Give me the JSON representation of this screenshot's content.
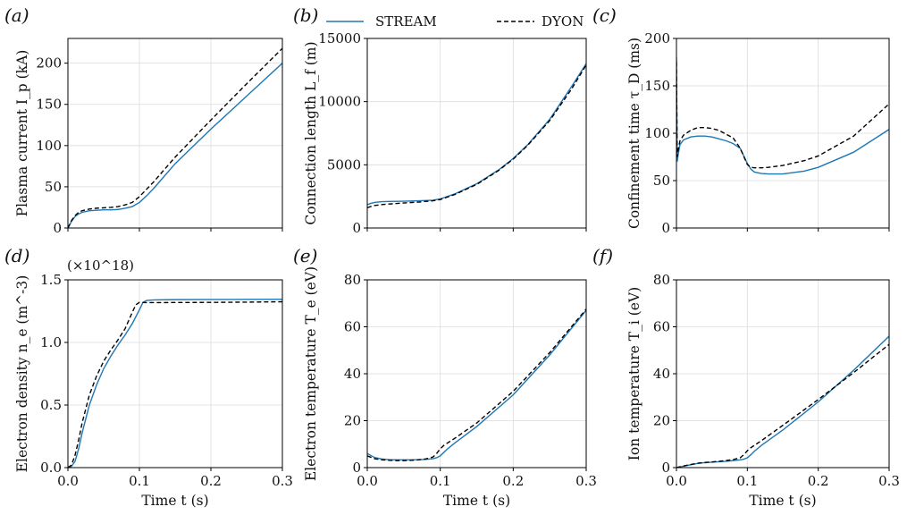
{
  "legend": {
    "entries": [
      {
        "label": "STREAM",
        "color": "#1f77b4",
        "dash": "solid"
      },
      {
        "label": "DYON",
        "color": "#000000",
        "dash": "dashed"
      }
    ],
    "placement": "top-center"
  },
  "chart_data": [
    {
      "panel": "(a)",
      "type": "line",
      "xlabel": "",
      "ylabel": "Plasma current I_p (kA)",
      "xlim": [
        0,
        0.3
      ],
      "ylim": [
        0,
        230
      ],
      "xticks": [],
      "yticks": [
        "0",
        "50",
        "100",
        "150",
        "200"
      ],
      "grid": true,
      "series": [
        {
          "name": "STREAM",
          "x": [
            0,
            0.005,
            0.01,
            0.015,
            0.02,
            0.03,
            0.04,
            0.05,
            0.06,
            0.07,
            0.08,
            0.09,
            0.1,
            0.11,
            0.12,
            0.15,
            0.2,
            0.25,
            0.3
          ],
          "y": [
            0,
            8,
            14,
            17,
            19,
            21,
            21.5,
            22,
            22,
            22.5,
            24,
            26,
            31,
            39,
            48,
            78,
            120,
            160,
            200
          ]
        },
        {
          "name": "DYON",
          "x": [
            0,
            0.005,
            0.01,
            0.015,
            0.02,
            0.03,
            0.04,
            0.05,
            0.06,
            0.07,
            0.08,
            0.09,
            0.1,
            0.11,
            0.12,
            0.15,
            0.2,
            0.25,
            0.3
          ],
          "y": [
            0,
            9,
            15,
            19,
            21,
            23,
            24,
            24.5,
            25,
            26,
            28,
            31,
            38,
            47,
            56,
            86,
            131,
            175,
            218
          ]
        }
      ]
    },
    {
      "panel": "(b)",
      "type": "line",
      "xlabel": "",
      "ylabel": "Connection length L_f (m)",
      "xlim": [
        0,
        0.3
      ],
      "ylim": [
        0,
        15000
      ],
      "xticks": [],
      "yticks": [
        "0",
        "5000",
        "10000",
        "15000"
      ],
      "grid": true,
      "series": [
        {
          "name": "STREAM",
          "x": [
            0,
            0.005,
            0.01,
            0.02,
            0.03,
            0.05,
            0.07,
            0.09,
            0.1,
            0.12,
            0.15,
            0.18,
            0.2,
            0.22,
            0.25,
            0.28,
            0.3
          ],
          "y": [
            1850,
            1950,
            2020,
            2080,
            2100,
            2120,
            2150,
            2200,
            2300,
            2700,
            3500,
            4600,
            5500,
            6600,
            8600,
            11200,
            13000
          ]
        },
        {
          "name": "DYON",
          "x": [
            0,
            0.005,
            0.01,
            0.02,
            0.03,
            0.05,
            0.07,
            0.09,
            0.1,
            0.12,
            0.15,
            0.18,
            0.2,
            0.22,
            0.25,
            0.28,
            0.3
          ],
          "y": [
            1600,
            1700,
            1780,
            1850,
            1900,
            1980,
            2050,
            2150,
            2250,
            2650,
            3450,
            4550,
            5450,
            6550,
            8500,
            11000,
            12900
          ]
        }
      ]
    },
    {
      "panel": "(c)",
      "type": "line",
      "xlabel": "",
      "ylabel": "Confinement time τ_D (ms)",
      "xlim": [
        0,
        0.3
      ],
      "ylim": [
        0,
        200
      ],
      "xticks": [],
      "yticks": [
        "0",
        "50",
        "100",
        "150",
        "200"
      ],
      "grid": true,
      "series": [
        {
          "name": "STREAM",
          "x": [
            0,
            0.001,
            0.003,
            0.005,
            0.01,
            0.02,
            0.03,
            0.04,
            0.05,
            0.06,
            0.07,
            0.08,
            0.09,
            0.1,
            0.105,
            0.11,
            0.12,
            0.13,
            0.15,
            0.18,
            0.2,
            0.25,
            0.3
          ],
          "y": [
            180,
            70,
            80,
            88,
            93,
            96,
            97,
            97,
            96,
            94,
            92,
            89,
            84,
            68,
            62,
            59,
            57.5,
            57,
            57,
            60,
            64,
            80,
            104
          ]
        },
        {
          "name": "DYON",
          "x": [
            0,
            0.001,
            0.003,
            0.005,
            0.01,
            0.02,
            0.03,
            0.04,
            0.05,
            0.06,
            0.07,
            0.08,
            0.09,
            0.1,
            0.105,
            0.11,
            0.12,
            0.13,
            0.15,
            0.18,
            0.2,
            0.25,
            0.3
          ],
          "y": [
            175,
            75,
            85,
            92,
            98,
            103,
            106,
            106,
            105,
            103,
            99,
            95,
            84,
            67,
            64,
            63.5,
            63.5,
            64,
            66,
            71,
            76,
            97,
            131
          ]
        }
      ]
    },
    {
      "panel": "(d)",
      "type": "line",
      "xlabel": "Time t (s)",
      "ylabel": "Electron density n_e (m^-3)",
      "multiplier": "(×10^18)",
      "xlim": [
        0,
        0.3
      ],
      "ylim": [
        0,
        1.5
      ],
      "xticks": [
        "0.0",
        "0.1",
        "0.2",
        "0.3"
      ],
      "yticks": [
        "0.0",
        "0.5",
        "1.0",
        "1.5"
      ],
      "grid": true,
      "series": [
        {
          "name": "STREAM",
          "x": [
            0,
            0.005,
            0.01,
            0.015,
            0.02,
            0.03,
            0.04,
            0.05,
            0.06,
            0.07,
            0.08,
            0.09,
            0.1,
            0.105,
            0.11,
            0.12,
            0.15,
            0.2,
            0.25,
            0.3
          ],
          "y": [
            0,
            0.01,
            0.05,
            0.15,
            0.28,
            0.5,
            0.66,
            0.79,
            0.89,
            0.98,
            1.06,
            1.15,
            1.26,
            1.32,
            1.335,
            1.34,
            1.342,
            1.343,
            1.344,
            1.345
          ]
        },
        {
          "name": "DYON",
          "x": [
            0,
            0.005,
            0.01,
            0.015,
            0.02,
            0.03,
            0.04,
            0.05,
            0.06,
            0.07,
            0.08,
            0.09,
            0.095,
            0.1,
            0.11,
            0.15,
            0.2,
            0.25,
            0.3
          ],
          "y": [
            0,
            0.02,
            0.1,
            0.22,
            0.36,
            0.58,
            0.73,
            0.85,
            0.94,
            1.02,
            1.11,
            1.24,
            1.3,
            1.32,
            1.318,
            1.319,
            1.32,
            1.322,
            1.325
          ]
        }
      ]
    },
    {
      "panel": "(e)",
      "type": "line",
      "xlabel": "Time t (s)",
      "ylabel": "Electron temperature T_e (eV)",
      "xlim": [
        0,
        0.3
      ],
      "ylim": [
        0,
        80
      ],
      "xticks": [
        "0.0",
        "0.1",
        "0.2",
        "0.3"
      ],
      "yticks": [
        "0",
        "20",
        "40",
        "60",
        "80"
      ],
      "grid": true,
      "series": [
        {
          "name": "STREAM",
          "x": [
            0,
            0.01,
            0.02,
            0.03,
            0.04,
            0.05,
            0.06,
            0.07,
            0.08,
            0.09,
            0.095,
            0.1,
            0.105,
            0.11,
            0.12,
            0.15,
            0.2,
            0.25,
            0.3
          ],
          "y": [
            6,
            4.3,
            3.7,
            3.4,
            3.3,
            3.3,
            3.3,
            3.4,
            3.5,
            3.8,
            4.2,
            5,
            6.5,
            8,
            10.5,
            17.5,
            31,
            48,
            67
          ]
        },
        {
          "name": "DYON",
          "x": [
            0,
            0.01,
            0.02,
            0.03,
            0.04,
            0.05,
            0.06,
            0.07,
            0.08,
            0.09,
            0.095,
            0.1,
            0.105,
            0.11,
            0.12,
            0.15,
            0.2,
            0.25,
            0.3
          ],
          "y": [
            5,
            3.8,
            3.3,
            3.1,
            3,
            3,
            3.1,
            3.3,
            3.7,
            4.5,
            6,
            8,
            9.5,
            10.5,
            12.5,
            19,
            32.5,
            49,
            67.5
          ]
        }
      ]
    },
    {
      "panel": "(f)",
      "type": "line",
      "xlabel": "Time t (s)",
      "ylabel": "Ion temperature T_i (eV)",
      "xlim": [
        0,
        0.3
      ],
      "ylim": [
        0,
        80
      ],
      "xticks": [
        "0.0",
        "0.1",
        "0.2",
        "0.3"
      ],
      "yticks": [
        "0",
        "20",
        "40",
        "60",
        "80"
      ],
      "grid": true,
      "series": [
        {
          "name": "STREAM",
          "x": [
            0,
            0.01,
            0.02,
            0.03,
            0.04,
            0.05,
            0.06,
            0.07,
            0.08,
            0.09,
            0.095,
            0.1,
            0.105,
            0.11,
            0.12,
            0.15,
            0.2,
            0.25,
            0.3
          ],
          "y": [
            0,
            0.6,
            1.2,
            1.8,
            2.1,
            2.3,
            2.5,
            2.7,
            3,
            3.3,
            3.6,
            4.2,
            5.5,
            7,
            9.5,
            16,
            28,
            41.5,
            56
          ]
        },
        {
          "name": "DYON",
          "x": [
            0,
            0.01,
            0.02,
            0.03,
            0.04,
            0.05,
            0.06,
            0.07,
            0.08,
            0.09,
            0.095,
            0.1,
            0.105,
            0.11,
            0.12,
            0.15,
            0.2,
            0.25,
            0.3
          ],
          "y": [
            0,
            0.7,
            1.3,
            1.9,
            2.2,
            2.4,
            2.7,
            3,
            3.4,
            4.2,
            5.5,
            7.2,
            8.5,
            9.5,
            11.5,
            18,
            29,
            40.5,
            52.5
          ]
        }
      ]
    }
  ]
}
